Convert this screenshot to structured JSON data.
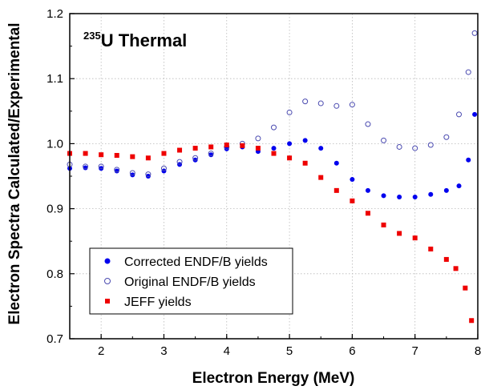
{
  "chart_data": {
    "type": "scatter",
    "annotation": {
      "superscript": "235",
      "text": "U Thermal"
    },
    "xlabel": "Electron Energy (MeV)",
    "ylabel": "Electron Spectra Calculated/Experimental",
    "xlim": [
      1.5,
      8.0
    ],
    "ylim": [
      0.7,
      1.2
    ],
    "xticks": [
      "2",
      "3",
      "4",
      "5",
      "6",
      "7",
      "8"
    ],
    "yticks": [
      "0.7",
      "0.8",
      "0.9",
      "1.0",
      "1.1",
      "1.2"
    ],
    "grid": true,
    "legend_position": "bottom-left",
    "series": [
      {
        "name": "Corrected ENDF/B yields",
        "marker": "filled-circle",
        "color": "#0000ee",
        "x": [
          1.5,
          1.75,
          2.0,
          2.25,
          2.5,
          2.75,
          3.0,
          3.25,
          3.5,
          3.75,
          4.0,
          4.25,
          4.5,
          4.75,
          5.0,
          5.25,
          5.5,
          5.75,
          6.0,
          6.25,
          6.5,
          6.75,
          7.0,
          7.25,
          7.5,
          7.7,
          7.85,
          7.95
        ],
        "y": [
          0.962,
          0.963,
          0.962,
          0.958,
          0.952,
          0.95,
          0.958,
          0.968,
          0.975,
          0.983,
          0.992,
          0.995,
          0.988,
          0.993,
          1.0,
          1.005,
          0.993,
          0.97,
          0.945,
          0.928,
          0.92,
          0.918,
          0.918,
          0.922,
          0.928,
          0.935,
          0.975,
          1.045
        ]
      },
      {
        "name": "Original ENDF/B yields",
        "marker": "open-circle",
        "color": "#4a4ab0",
        "x": [
          1.5,
          1.75,
          2.0,
          2.25,
          2.5,
          2.75,
          3.0,
          3.25,
          3.5,
          3.75,
          4.0,
          4.25,
          4.5,
          4.75,
          5.0,
          5.25,
          5.5,
          5.75,
          6.0,
          6.25,
          6.5,
          6.75,
          7.0,
          7.25,
          7.5,
          7.7,
          7.85,
          7.95
        ],
        "y": [
          0.968,
          0.965,
          0.965,
          0.96,
          0.955,
          0.953,
          0.962,
          0.972,
          0.978,
          0.985,
          0.995,
          1.0,
          1.008,
          1.025,
          1.048,
          1.065,
          1.062,
          1.058,
          1.06,
          1.03,
          1.005,
          0.995,
          0.993,
          0.998,
          1.01,
          1.045,
          1.11,
          1.17
        ]
      },
      {
        "name": "JEFF yields",
        "marker": "filled-square",
        "color": "#ee0000",
        "x": [
          1.5,
          1.75,
          2.0,
          2.25,
          2.5,
          2.75,
          3.0,
          3.25,
          3.5,
          3.75,
          4.0,
          4.25,
          4.5,
          4.75,
          5.0,
          5.25,
          5.5,
          5.75,
          6.0,
          6.25,
          6.5,
          6.75,
          7.0,
          7.25,
          7.5,
          7.65,
          7.8,
          7.9
        ],
        "y": [
          0.985,
          0.985,
          0.983,
          0.982,
          0.98,
          0.978,
          0.985,
          0.99,
          0.993,
          0.995,
          0.998,
          0.997,
          0.993,
          0.985,
          0.978,
          0.97,
          0.948,
          0.928,
          0.912,
          0.893,
          0.875,
          0.862,
          0.855,
          0.838,
          0.822,
          0.808,
          0.778,
          0.728
        ]
      }
    ]
  }
}
